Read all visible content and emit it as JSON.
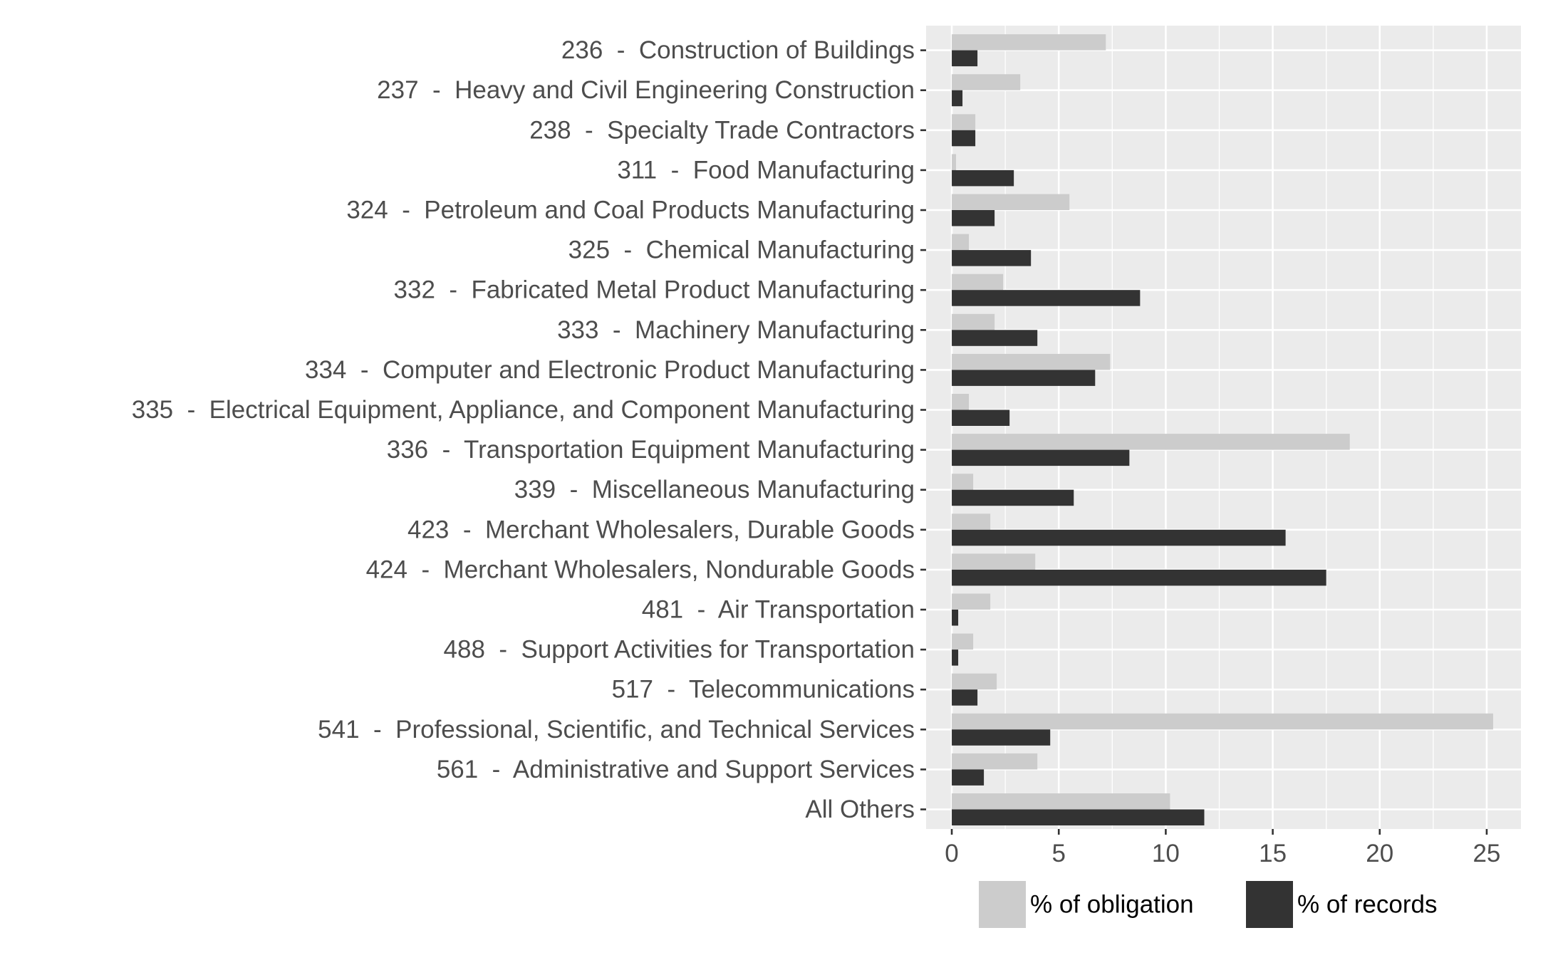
{
  "chart_data": {
    "type": "bar",
    "orientation": "horizontal",
    "title": "",
    "xlabel": "",
    "ylabel": "",
    "categories": [
      "236  -  Construction of Buildings",
      "237  -  Heavy and Civil Engineering Construction",
      "238  -  Specialty Trade Contractors",
      "311  -  Food Manufacturing",
      "324  -  Petroleum and Coal Products Manufacturing",
      "325  -  Chemical Manufacturing",
      "332  -  Fabricated Metal Product Manufacturing",
      "333  -  Machinery Manufacturing",
      "334  -  Computer and Electronic Product Manufacturing",
      "335  -  Electrical Equipment, Appliance, and Component Manufacturing",
      "336  -  Transportation Equipment Manufacturing",
      "339  -  Miscellaneous Manufacturing",
      "423  -  Merchant Wholesalers, Durable Goods",
      "424  -  Merchant Wholesalers, Nondurable Goods",
      "481  -  Air Transportation",
      "488  -  Support Activities for Transportation",
      "517  -  Telecommunications",
      "541  -  Professional, Scientific, and Technical Services",
      "561  -  Administrative and Support Services",
      "All Others"
    ],
    "series": [
      {
        "name": "% of obligation",
        "color": "#cccccc",
        "values": [
          7.2,
          3.2,
          1.1,
          0.2,
          5.5,
          0.8,
          2.4,
          2.0,
          7.4,
          0.8,
          18.6,
          1.0,
          1.8,
          3.9,
          1.8,
          1.0,
          2.1,
          25.3,
          4.0,
          10.2
        ]
      },
      {
        "name": "% of records",
        "color": "#333333",
        "values": [
          1.2,
          0.5,
          1.1,
          2.9,
          2.0,
          3.7,
          8.8,
          4.0,
          6.7,
          2.7,
          8.3,
          5.7,
          15.6,
          17.5,
          0.3,
          0.3,
          1.2,
          4.6,
          1.5,
          11.8
        ]
      }
    ],
    "xlim": [
      -1.2,
      26.6
    ],
    "xticks": [
      0,
      5,
      10,
      15,
      20,
      25
    ],
    "grid": true,
    "legend": {
      "position": "bottom",
      "labels": [
        "% of obligation",
        "% of records"
      ]
    },
    "colors": {
      "panel": "#ebebeb",
      "grid": "#ffffff",
      "text": "#4d4d4d",
      "legend_text": "#000000"
    }
  }
}
